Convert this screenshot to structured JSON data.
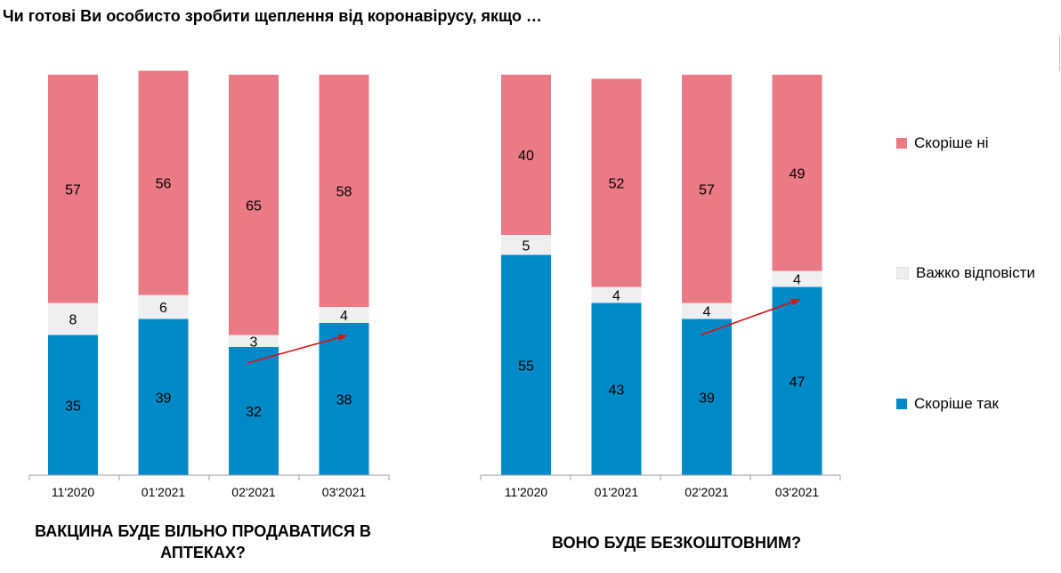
{
  "title": "Чи готові Ви особисто зробити щеплення від коронавірусу, якщо …",
  "colors": {
    "no": "#ea7a86",
    "hard": "#efefef",
    "yes": "#0089c7",
    "arrow": "#e01010"
  },
  "legend": [
    {
      "key": "no",
      "label": "Скоріше ні"
    },
    {
      "key": "hard",
      "label": "Важко відповісти"
    },
    {
      "key": "yes",
      "label": "Скоріше так"
    }
  ],
  "chart_data": [
    {
      "type": "bar",
      "stacked": true,
      "title": "ВАКЦИНА БУДЕ ВІЛЬНО ПРОДАВАТИСЯ В АПТЕКАХ?",
      "categories": [
        "11'2020",
        "01'2021",
        "02'2021",
        "03'2021"
      ],
      "series": [
        {
          "name": "Скоріше так",
          "key": "yes",
          "values": [
            35,
            39,
            32,
            38
          ]
        },
        {
          "name": "Важко відповісти",
          "key": "hard",
          "values": [
            8,
            6,
            3,
            4
          ]
        },
        {
          "name": "Скоріше ні",
          "key": "no",
          "values": [
            57,
            56,
            65,
            58
          ]
        }
      ],
      "ylim": [
        0,
        100
      ],
      "trend_arrow": {
        "from_category": "02'2021",
        "to_category": "03'2021",
        "series": "Скоріше так"
      }
    },
    {
      "type": "bar",
      "stacked": true,
      "title": "ВОНО БУДЕ БЕЗКОШТОВНИМ?",
      "categories": [
        "11'2020",
        "01'2021",
        "02'2021",
        "03'2021"
      ],
      "series": [
        {
          "name": "Скоріше так",
          "key": "yes",
          "values": [
            55,
            43,
            39,
            47
          ]
        },
        {
          "name": "Важко відповісти",
          "key": "hard",
          "values": [
            5,
            4,
            4,
            4
          ]
        },
        {
          "name": "Скоріше ні",
          "key": "no",
          "values": [
            40,
            52,
            57,
            49
          ]
        }
      ],
      "ylim": [
        0,
        100
      ],
      "trend_arrow": {
        "from_category": "02'2021",
        "to_category": "03'2021",
        "series": "Скоріше так"
      }
    }
  ]
}
